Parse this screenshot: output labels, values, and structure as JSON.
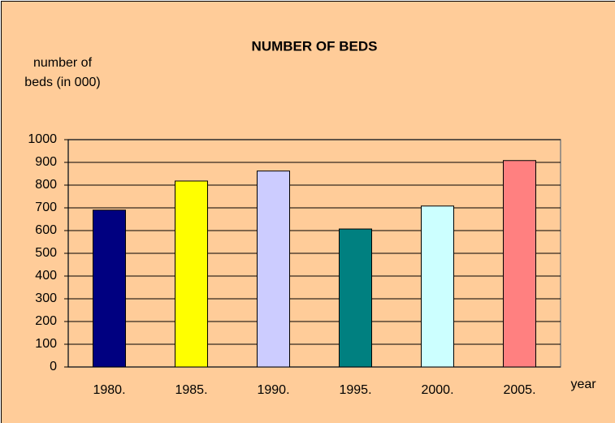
{
  "chart_data": {
    "type": "bar",
    "title": "NUMBER OF BEDS",
    "y_label": "number of beds (in 000)",
    "x_label": "year",
    "categories": [
      "1980.",
      "1985.",
      "1990.",
      "1995.",
      "2000.",
      "2005."
    ],
    "values": [
      690,
      818,
      862,
      607,
      708,
      908
    ],
    "colors": [
      "#000080",
      "#ffff00",
      "#ccccff",
      "#008080",
      "#ccffff",
      "#ff8080"
    ],
    "ylim": [
      0,
      1000
    ],
    "yticks": [
      0,
      100,
      200,
      300,
      400,
      500,
      600,
      700,
      800,
      900,
      1000
    ],
    "grid": true
  }
}
